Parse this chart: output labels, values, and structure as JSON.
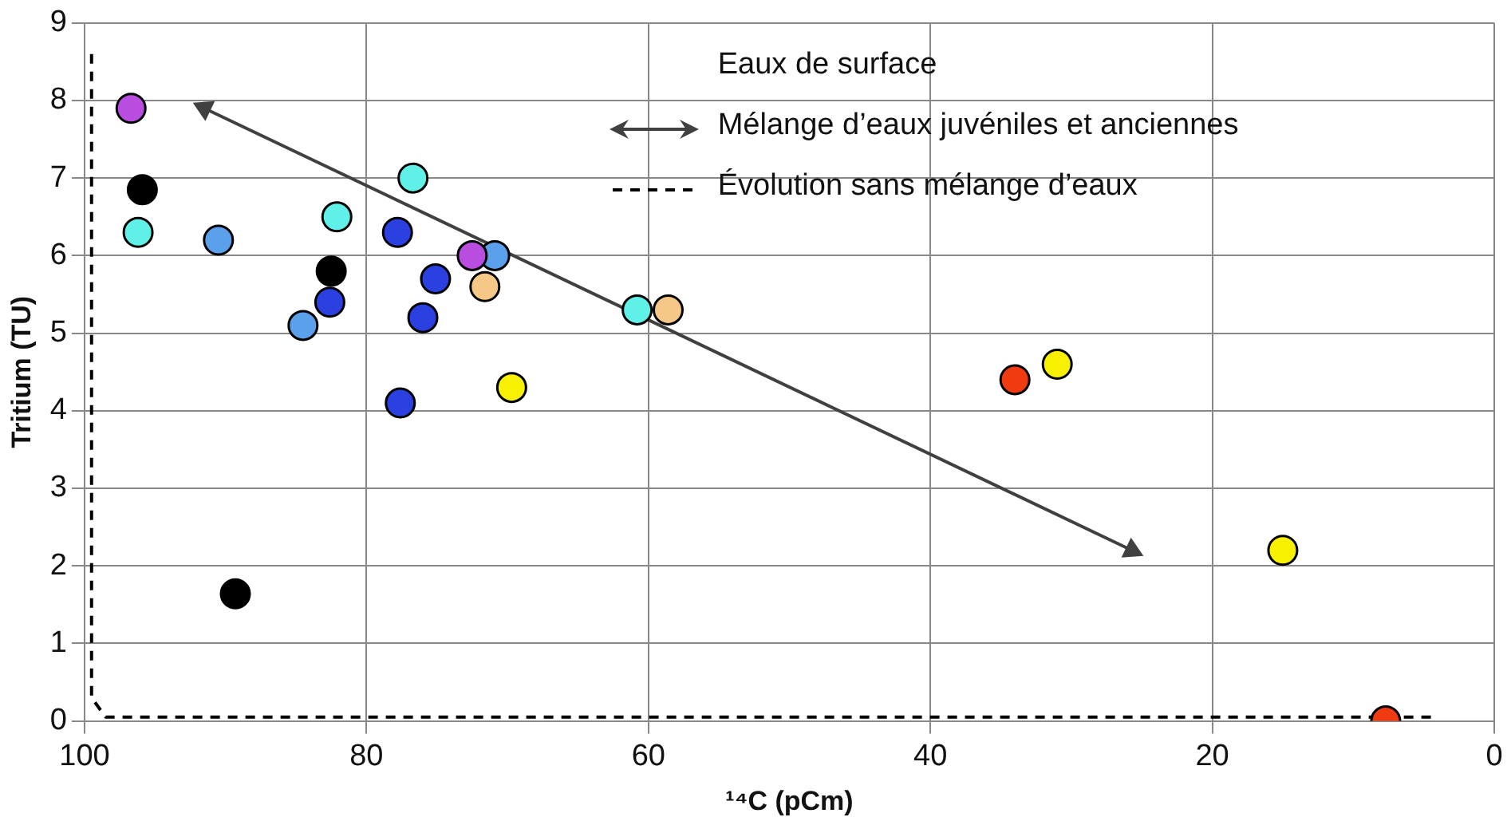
{
  "chart_data": {
    "type": "scatter",
    "xlabel": "¹⁴C (pCm)",
    "ylabel": "Tritium (TU)",
    "legend_title": "Eaux de surface",
    "xlim": [
      100,
      0
    ],
    "xticks": [
      100,
      80,
      60,
      40,
      20,
      0
    ],
    "ylim": [
      0,
      9
    ],
    "yticks": [
      0,
      1,
      2,
      3,
      4,
      5,
      6,
      7,
      8,
      9
    ],
    "grid": true,
    "legend": "top right",
    "marker": "circle",
    "series": [
      {
        "color": "#b84de0",
        "x": [
          96.7,
          72.5
        ],
        "values": [
          7.9,
          6.0
        ]
      },
      {
        "color": "#000000",
        "x": [
          95.9,
          82.5,
          89.3
        ],
        "values": [
          6.85,
          5.8,
          1.64
        ]
      },
      {
        "color": "#5ff0e8",
        "x": [
          96.2,
          82.1,
          76.7,
          60.8
        ],
        "values": [
          6.3,
          6.5,
          7.0,
          5.3
        ]
      },
      {
        "color": "#5aa0ea",
        "x": [
          90.5,
          84.5,
          70.9
        ],
        "values": [
          6.2,
          5.1,
          6.0
        ]
      },
      {
        "color": "#2a40e0",
        "x": [
          82.6,
          77.8,
          75.1,
          76.0,
          77.6
        ],
        "values": [
          5.4,
          6.3,
          5.7,
          5.2,
          4.1
        ]
      },
      {
        "color": "#f6c888",
        "x": [
          71.6,
          58.6
        ],
        "values": [
          5.6,
          5.3
        ]
      },
      {
        "color": "#f7f000",
        "x": [
          69.7,
          31,
          15.0
        ],
        "values": [
          4.3,
          4.6,
          2.2
        ]
      },
      {
        "color": "#f03a10",
        "x": [
          34,
          7.7
        ],
        "values": [
          4.4,
          0
        ]
      },
      {
        "type": "line",
        "name": "Mélange d’eaux juvéniles et anciennes",
        "color": "#404040",
        "line_style": "solid",
        "marker": "triangle",
        "x": [
          91.5,
          25.7
        ],
        "values": [
          7.9,
          2.2
        ]
      },
      {
        "type": "line",
        "name": "Évolution sans mélange d’eaux",
        "color": "#000000",
        "line_style": "dashed",
        "marker": "none",
        "x": [
          99.5,
          99.5,
          98.5,
          4.1
        ],
        "values": [
          8.6,
          0.3,
          0.05,
          0.05
        ]
      }
    ]
  }
}
